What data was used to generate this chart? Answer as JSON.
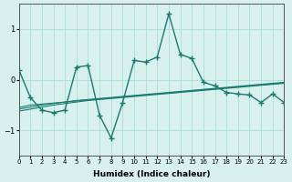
{
  "x": [
    0,
    1,
    2,
    3,
    4,
    5,
    6,
    7,
    8,
    9,
    10,
    11,
    12,
    13,
    14,
    15,
    16,
    17,
    18,
    19,
    20,
    21,
    22,
    23
  ],
  "y_main": [
    0.2,
    -0.35,
    -0.6,
    -0.65,
    -0.6,
    0.25,
    0.28,
    -0.7,
    -1.15,
    -0.45,
    0.38,
    0.35,
    0.45,
    1.3,
    0.5,
    0.42,
    -0.05,
    -0.12,
    -0.25,
    -0.28,
    -0.3,
    -0.45,
    -0.28,
    -0.45
  ],
  "y_trend1": [
    -0.55,
    -0.5,
    -0.48,
    -0.46,
    -0.44,
    -0.42,
    -0.4,
    -0.38,
    -0.36,
    -0.34,
    -0.32,
    -0.3,
    -0.28,
    -0.26,
    -0.24,
    -0.22,
    -0.2,
    -0.18,
    -0.16,
    -0.14,
    -0.12,
    -0.1,
    -0.08,
    -0.06
  ],
  "y_trend2": [
    -0.58,
    -0.54,
    -0.5,
    -0.47,
    -0.44,
    -0.41,
    -0.39,
    -0.37,
    -0.35,
    -0.33,
    -0.31,
    -0.29,
    -0.27,
    -0.25,
    -0.23,
    -0.21,
    -0.19,
    -0.17,
    -0.15,
    -0.13,
    -0.11,
    -0.09,
    -0.07,
    -0.05
  ],
  "y_trend3": [
    -0.62,
    -0.58,
    -0.54,
    -0.5,
    -0.47,
    -0.44,
    -0.41,
    -0.39,
    -0.37,
    -0.35,
    -0.33,
    -0.31,
    -0.29,
    -0.27,
    -0.25,
    -0.23,
    -0.21,
    -0.19,
    -0.17,
    -0.15,
    -0.13,
    -0.11,
    -0.09,
    -0.07
  ],
  "color": "#1a7a6e",
  "bg_color": "#d8f0ee",
  "grid_color": "#aaddd8",
  "xlabel": "Humidex (Indice chaleur)",
  "ylim": [
    -1.5,
    1.5
  ],
  "xlim": [
    0,
    23
  ],
  "yticks": [
    -1,
    0,
    1
  ],
  "xtick_labels": [
    "0",
    "1",
    "2",
    "3",
    "4",
    "5",
    "6",
    "7",
    "8",
    "9",
    "10",
    "11",
    "12",
    "13",
    "14",
    "15",
    "16",
    "17",
    "18",
    "19",
    "20",
    "21",
    "22",
    "23"
  ]
}
